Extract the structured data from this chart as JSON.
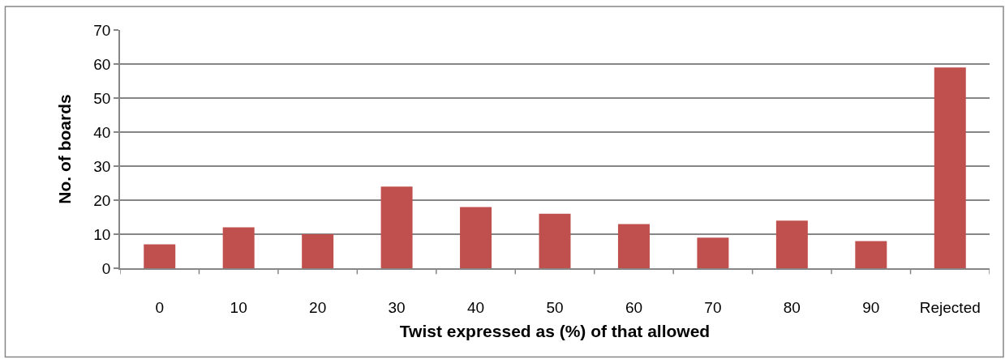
{
  "chart_data": {
    "type": "bar",
    "xlabel": "Twist expressed as (%) of that allowed",
    "ylabel": "No. of boards",
    "categories": [
      "0",
      "10",
      "20",
      "30",
      "40",
      "50",
      "60",
      "70",
      "80",
      "90",
      "Rejected"
    ],
    "values": [
      7,
      12,
      10,
      24,
      18,
      16,
      13,
      9,
      14,
      8,
      59
    ],
    "color": "#c0504d",
    "ylim": [
      0,
      70
    ],
    "yticks": [
      0,
      10,
      20,
      30,
      40,
      50,
      60,
      70
    ],
    "grid": "y"
  }
}
